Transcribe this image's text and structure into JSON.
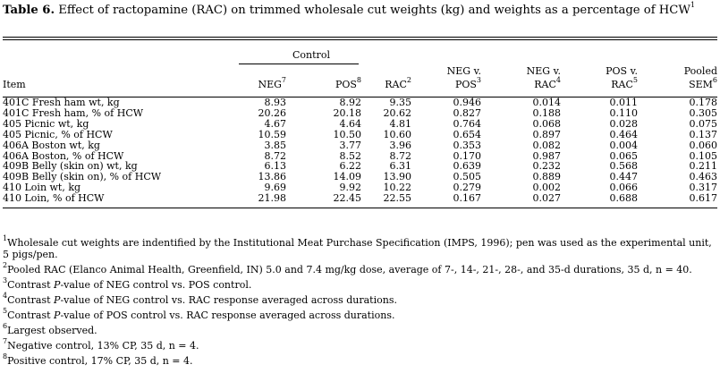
{
  "caption": {
    "label": "Table 6.",
    "text": "Effect of ractopamine (RAC) on trimmed wholesale cut weights (kg) and weights as a percentage of HCW",
    "sup": "1"
  },
  "header": {
    "group": "Control",
    "item": "Item",
    "neg": "NEG",
    "neg_sup": "7",
    "pos": "POS",
    "pos_sup": "8",
    "rac": "RAC",
    "rac_sup": "2",
    "neg_v_pos_1": "NEG v.",
    "neg_v_pos_2": "POS",
    "neg_v_pos_sup": "3",
    "neg_v_rac_1": "NEG v.",
    "neg_v_rac_2": "RAC",
    "neg_v_rac_sup": "4",
    "pos_v_rac_1": "POS v.",
    "pos_v_rac_2": "RAC",
    "pos_v_rac_sup": "5",
    "pooled_1": "Pooled",
    "pooled_2": "SEM",
    "pooled_sup": "6"
  },
  "rows": [
    {
      "item": "401C Fresh ham wt, kg",
      "neg": "8.93",
      "pos": "8.92",
      "rac": "9.35",
      "nvp": "0.946",
      "nvr": "0.014",
      "pvr": "0.011",
      "sem": "0.178"
    },
    {
      "item": "401C Fresh ham, % of HCW",
      "neg": "20.26",
      "pos": "20.18",
      "rac": "20.62",
      "nvp": "0.827",
      "nvr": "0.188",
      "pvr": "0.110",
      "sem": "0.305"
    },
    {
      "item": "405 Picnic wt, kg",
      "neg": "4.67",
      "pos": "4.64",
      "rac": "4.81",
      "nvp": "0.764",
      "nvr": "0.068",
      "pvr": "0.028",
      "sem": "0.075"
    },
    {
      "item": "405 Picnic, % of HCW",
      "neg": "10.59",
      "pos": "10.50",
      "rac": "10.60",
      "nvp": "0.654",
      "nvr": "0.897",
      "pvr": "0.464",
      "sem": "0.137"
    },
    {
      "item": "406A Boston wt, kg",
      "neg": "3.85",
      "pos": "3.77",
      "rac": "3.96",
      "nvp": "0.353",
      "nvr": "0.082",
      "pvr": "0.004",
      "sem": "0.060"
    },
    {
      "item": "406A Boston, % of HCW",
      "neg": "8.72",
      "pos": "8.52",
      "rac": "8.72",
      "nvp": "0.170",
      "nvr": "0.987",
      "pvr": "0.065",
      "sem": "0.105"
    },
    {
      "item": "409B Belly (skin on) wt, kg",
      "neg": "6.13",
      "pos": "6.22",
      "rac": "6.31",
      "nvp": "0.639",
      "nvr": "0.232",
      "pvr": "0.568",
      "sem": "0.211"
    },
    {
      "item": "409B Belly (skin on), % of HCW",
      "neg": "13.86",
      "pos": "14.09",
      "rac": "13.90",
      "nvp": "0.505",
      "nvr": "0.889",
      "pvr": "0.447",
      "sem": "0.463"
    },
    {
      "item": "410 Loin wt, kg",
      "neg": "9.69",
      "pos": "9.92",
      "rac": "10.22",
      "nvp": "0.279",
      "nvr": "0.002",
      "pvr": "0.066",
      "sem": "0.317"
    },
    {
      "item": "410 Loin, % of HCW",
      "neg": "21.98",
      "pos": "22.45",
      "rac": "22.55",
      "nvp": "0.167",
      "nvr": "0.027",
      "pvr": "0.688",
      "sem": "0.617"
    }
  ],
  "footnotes": {
    "f1_sup": "1",
    "f1": "Wholesale cut weights are indentified by the Institutional Meat Purchase Specification (IMPS, 1996); pen was used as the experimental unit, 5 pigs/pen.",
    "f2_sup": "2",
    "f2": "Pooled RAC (Elanco Animal Health, Greenfield, IN) 5.0 and 7.4 mg/kg dose, average of 7-, 14-, 21-, 28-, and 35-d durations, 35 d, n = 40.",
    "f3_sup": "3",
    "f3_a": "Contrast ",
    "f3_p": "P",
    "f3_b": "-value of NEG control vs. POS control.",
    "f4_sup": "4",
    "f4_a": "Contrast ",
    "f4_p": "P",
    "f4_b": "-value of NEG control vs. RAC response averaged across durations.",
    "f5_sup": "5",
    "f5_a": "Contrast ",
    "f5_p": "P",
    "f5_b": "-value of POS control vs. RAC response averaged across durations.",
    "f6_sup": "6",
    "f6": "Largest observed.",
    "f7_sup": "7",
    "f7": "Negative control, 13% CP, 35 d, n = 4.",
    "f8_sup": "8",
    "f8": "Positive control, 17% CP, 35 d, n = 4."
  }
}
